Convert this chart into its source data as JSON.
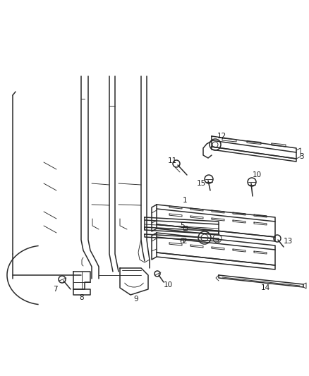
{
  "bg_color": "#ffffff",
  "line_color": "#2a2a2a",
  "label_color": "#1a1a1a",
  "lw_main": 1.1,
  "lw_thin": 0.65,
  "font_size": 7.5
}
